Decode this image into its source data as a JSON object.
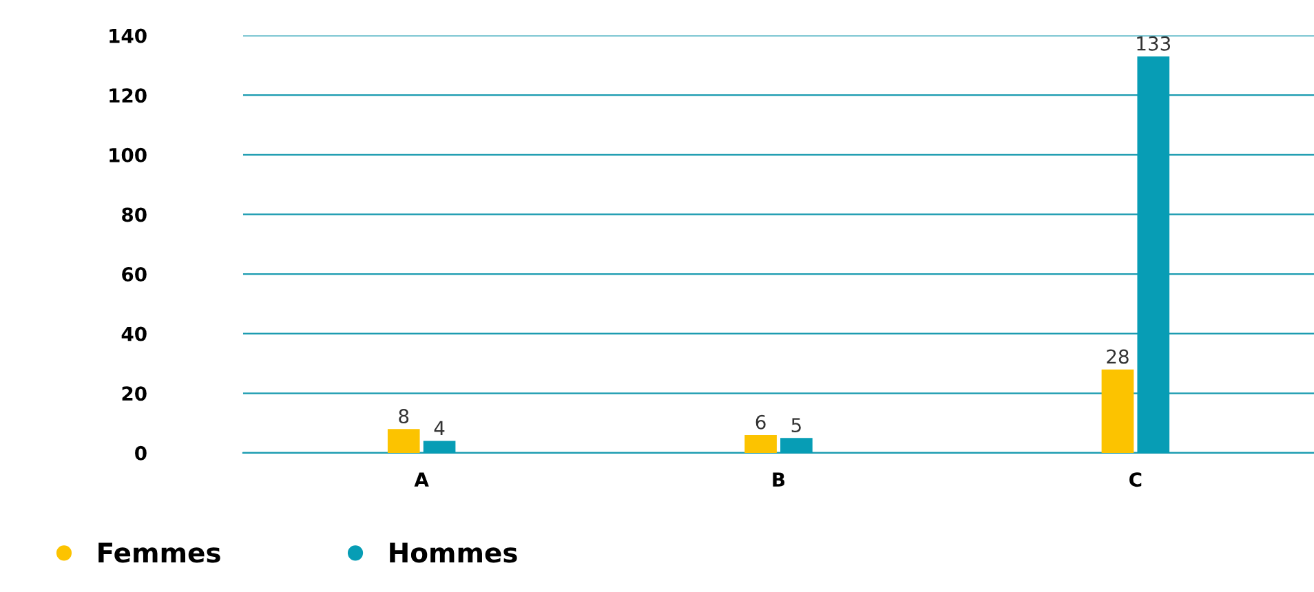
{
  "chart_data": {
    "type": "bar",
    "categories": [
      "A",
      "B",
      "C"
    ],
    "series": [
      {
        "name": "Femmes",
        "color": "#fcc300",
        "values": [
          8,
          6,
          28
        ]
      },
      {
        "name": "Hommes",
        "color": "#079db5",
        "values": [
          4,
          5,
          133
        ]
      }
    ],
    "ylim": [
      0,
      140
    ],
    "yticks": [
      0,
      20,
      40,
      60,
      80,
      100,
      120,
      140
    ],
    "grid": "y",
    "legend": "bottom left",
    "data_labels": true
  }
}
